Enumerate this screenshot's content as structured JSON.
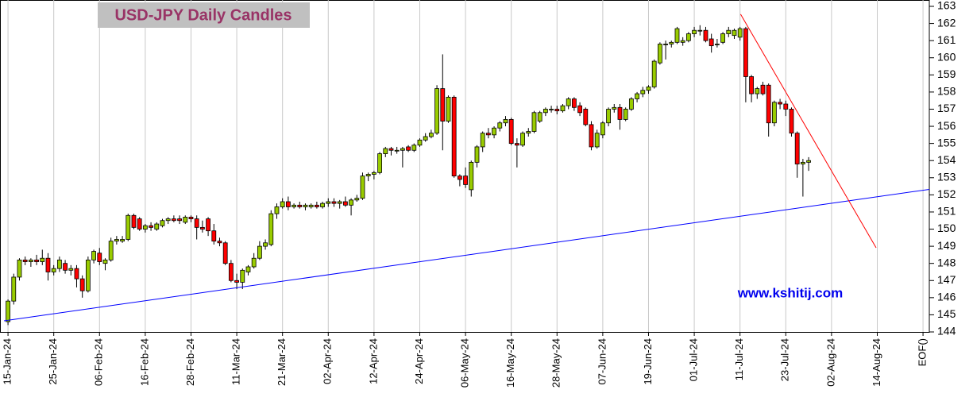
{
  "chart_data": {
    "type": "candlestick",
    "title": "USD-JPY Daily Candles",
    "watermark": "www.kshitij.com",
    "x": [
      0,
      1,
      2,
      3,
      4,
      5,
      6,
      7,
      8,
      9,
      10,
      11,
      12,
      13,
      14,
      15,
      16,
      17,
      18,
      19,
      20,
      21,
      22,
      23,
      24,
      25,
      26,
      27,
      28,
      29,
      30,
      31,
      32,
      33,
      34,
      35,
      36,
      37,
      38,
      39,
      40,
      41,
      42,
      43,
      44,
      45,
      46,
      47,
      48,
      49,
      50,
      51,
      52,
      53,
      54,
      55,
      56,
      57,
      58,
      59,
      60,
      61,
      62,
      63,
      64,
      65,
      66,
      67,
      68,
      69,
      70,
      71,
      72,
      73,
      74,
      75,
      76,
      77,
      78,
      79,
      80,
      81,
      82,
      83,
      84,
      85,
      86,
      87,
      88,
      89,
      90,
      91,
      92,
      93,
      94,
      95,
      96,
      97,
      98,
      99,
      100,
      101,
      102,
      103,
      104,
      105,
      106,
      107,
      108,
      109,
      110,
      111,
      112,
      113,
      114,
      115,
      116,
      117,
      118,
      119,
      120,
      121,
      122,
      123,
      124,
      125,
      126,
      127,
      128,
      129,
      130,
      131,
      132,
      133,
      134,
      135,
      136,
      137,
      138,
      139,
      140
    ],
    "ohlc": [
      [
        144.6,
        145.9,
        144.4,
        145.8
      ],
      [
        145.8,
        147.4,
        145.6,
        147.2
      ],
      [
        147.2,
        148.3,
        147.0,
        148.2
      ],
      [
        148.2,
        148.4,
        147.9,
        148.1
      ],
      [
        148.1,
        148.3,
        147.8,
        148.2
      ],
      [
        148.2,
        148.5,
        147.9,
        148.1
      ],
      [
        148.1,
        148.8,
        147.9,
        148.3
      ],
      [
        148.3,
        148.6,
        147.0,
        147.5
      ],
      [
        147.5,
        147.9,
        147.3,
        147.7
      ],
      [
        147.7,
        148.4,
        147.5,
        148.2
      ],
      [
        148.0,
        148.2,
        147.4,
        147.6
      ],
      [
        147.6,
        147.9,
        147.3,
        147.7
      ],
      [
        147.7,
        147.9,
        146.6,
        147.1
      ],
      [
        147.1,
        147.3,
        146.0,
        146.4
      ],
      [
        146.4,
        148.4,
        146.3,
        148.2
      ],
      [
        148.2,
        148.8,
        148.0,
        148.7
      ],
      [
        148.6,
        148.9,
        147.9,
        148.1
      ],
      [
        148.0,
        148.3,
        147.6,
        148.2
      ],
      [
        148.2,
        149.5,
        148.1,
        149.3
      ],
      [
        149.3,
        149.6,
        149.1,
        149.4
      ],
      [
        149.3,
        149.6,
        149.2,
        149.4
      ],
      [
        149.4,
        150.9,
        149.3,
        150.8
      ],
      [
        150.8,
        150.9,
        150.0,
        150.1
      ],
      [
        150.6,
        150.7,
        149.9,
        150.0
      ],
      [
        150.0,
        150.3,
        149.8,
        150.2
      ],
      [
        150.2,
        150.4,
        149.9,
        150.1
      ],
      [
        150.0,
        150.4,
        149.9,
        150.3
      ],
      [
        150.2,
        150.6,
        150.1,
        150.5
      ],
      [
        150.5,
        150.7,
        150.3,
        150.6
      ],
      [
        150.6,
        150.8,
        150.4,
        150.5
      ],
      [
        150.6,
        150.8,
        150.3,
        150.5
      ],
      [
        150.4,
        150.8,
        150.3,
        150.7
      ],
      [
        150.7,
        150.8,
        150.4,
        150.6
      ],
      [
        150.6,
        150.8,
        149.4,
        150.1
      ],
      [
        150.1,
        150.5,
        149.8,
        150.0
      ],
      [
        150.6,
        150.7,
        149.6,
        149.9
      ],
      [
        149.9,
        150.3,
        149.1,
        149.3
      ],
      [
        149.3,
        149.5,
        149.0,
        149.2
      ],
      [
        149.2,
        149.3,
        147.9,
        148.0
      ],
      [
        148.0,
        148.2,
        146.9,
        147.0
      ],
      [
        147.0,
        147.4,
        146.5,
        146.9
      ],
      [
        146.9,
        147.7,
        146.5,
        147.6
      ],
      [
        147.5,
        147.9,
        147.3,
        147.8
      ],
      [
        147.8,
        148.6,
        147.7,
        148.3
      ],
      [
        148.3,
        149.3,
        148.2,
        149.0
      ],
      [
        149.0,
        149.4,
        148.8,
        149.2
      ],
      [
        149.1,
        151.1,
        149.0,
        150.9
      ],
      [
        150.9,
        151.5,
        150.6,
        151.3
      ],
      [
        151.3,
        151.8,
        151.2,
        151.6
      ],
      [
        151.6,
        151.9,
        151.1,
        151.3
      ],
      [
        151.3,
        151.5,
        151.2,
        151.4
      ],
      [
        151.4,
        151.6,
        151.2,
        151.3
      ],
      [
        151.3,
        151.5,
        151.1,
        151.4
      ],
      [
        151.3,
        151.5,
        151.2,
        151.4
      ],
      [
        151.4,
        151.6,
        151.2,
        151.3
      ],
      [
        151.3,
        151.6,
        151.2,
        151.5
      ],
      [
        151.5,
        151.8,
        151.3,
        151.6
      ],
      [
        151.6,
        151.8,
        151.3,
        151.5
      ],
      [
        151.5,
        151.7,
        151.2,
        151.6
      ],
      [
        151.6,
        151.9,
        151.3,
        151.4
      ],
      [
        151.4,
        151.8,
        150.8,
        151.7
      ],
      [
        151.7,
        152.0,
        151.6,
        151.8
      ],
      [
        151.8,
        153.3,
        151.7,
        153.1
      ],
      [
        153.1,
        153.3,
        152.8,
        153.2
      ],
      [
        153.2,
        153.4,
        152.9,
        153.3
      ],
      [
        153.3,
        154.5,
        153.2,
        154.4
      ],
      [
        154.4,
        154.8,
        154.2,
        154.7
      ],
      [
        154.7,
        154.8,
        154.3,
        154.6
      ],
      [
        154.6,
        154.8,
        154.4,
        154.6
      ],
      [
        154.6,
        154.8,
        153.6,
        154.7
      ],
      [
        154.8,
        154.9,
        154.5,
        154.6
      ],
      [
        154.6,
        155.0,
        154.5,
        154.9
      ],
      [
        154.9,
        155.3,
        154.8,
        155.2
      ],
      [
        155.2,
        155.6,
        155.1,
        155.4
      ],
      [
        155.4,
        155.8,
        155.3,
        155.6
      ],
      [
        155.6,
        158.4,
        155.5,
        158.2
      ],
      [
        158.2,
        160.2,
        154.6,
        156.3
      ],
      [
        156.3,
        157.8,
        156.2,
        157.7
      ],
      [
        157.7,
        157.8,
        153.0,
        153.1
      ],
      [
        153.1,
        153.2,
        152.5,
        152.9
      ],
      [
        153.1,
        153.6,
        152.4,
        152.6
      ],
      [
        152.3,
        154.0,
        151.9,
        153.9
      ],
      [
        153.9,
        154.9,
        153.6,
        154.8
      ],
      [
        154.8,
        155.7,
        154.5,
        155.6
      ],
      [
        155.6,
        155.9,
        155.3,
        155.5
      ],
      [
        155.5,
        156.0,
        155.3,
        155.9
      ],
      [
        155.9,
        156.3,
        155.7,
        156.2
      ],
      [
        156.2,
        156.6,
        156.0,
        156.4
      ],
      [
        156.4,
        156.5,
        154.9,
        155.0
      ],
      [
        155.0,
        155.3,
        153.6,
        154.9
      ],
      [
        154.9,
        155.7,
        154.8,
        155.6
      ],
      [
        155.6,
        155.9,
        155.4,
        155.7
      ],
      [
        155.7,
        156.9,
        155.6,
        156.8
      ],
      [
        156.3,
        156.9,
        156.2,
        156.8
      ],
      [
        156.8,
        157.1,
        156.6,
        157.0
      ],
      [
        157.0,
        157.2,
        156.8,
        157.0
      ],
      [
        157.0,
        157.2,
        156.7,
        156.9
      ],
      [
        156.9,
        157.3,
        156.8,
        157.2
      ],
      [
        157.2,
        157.7,
        157.0,
        157.6
      ],
      [
        157.6,
        157.7,
        156.9,
        157.1
      ],
      [
        157.2,
        157.4,
        156.6,
        156.8
      ],
      [
        157.0,
        157.1,
        156.0,
        156.1
      ],
      [
        156.1,
        156.3,
        154.6,
        154.8
      ],
      [
        154.8,
        155.8,
        154.7,
        155.6
      ],
      [
        155.5,
        156.3,
        155.3,
        156.2
      ],
      [
        156.2,
        157.1,
        156.0,
        157.0
      ],
      [
        157.0,
        157.3,
        156.8,
        157.1
      ],
      [
        157.1,
        157.3,
        155.8,
        156.4
      ],
      [
        156.4,
        157.1,
        156.3,
        157.0
      ],
      [
        157.0,
        157.7,
        156.9,
        157.6
      ],
      [
        157.6,
        158.0,
        157.4,
        157.9
      ],
      [
        157.9,
        158.3,
        157.7,
        158.1
      ],
      [
        158.1,
        158.4,
        157.9,
        158.3
      ],
      [
        158.3,
        159.9,
        158.2,
        159.8
      ],
      [
        159.7,
        160.9,
        159.6,
        160.8
      ],
      [
        160.8,
        161.0,
        159.9,
        160.8
      ],
      [
        160.8,
        161.0,
        160.6,
        160.9
      ],
      [
        160.9,
        161.8,
        160.8,
        161.7
      ],
      [
        160.9,
        161.2,
        160.7,
        161.0
      ],
      [
        161.0,
        161.5,
        160.9,
        161.4
      ],
      [
        161.4,
        161.8,
        161.2,
        161.6
      ],
      [
        161.6,
        161.9,
        161.3,
        161.6
      ],
      [
        161.6,
        161.8,
        160.9,
        161.0
      ],
      [
        161.1,
        161.4,
        160.3,
        160.7
      ],
      [
        160.8,
        161.1,
        160.6,
        160.8
      ],
      [
        160.9,
        161.5,
        160.8,
        161.4
      ],
      [
        161.4,
        161.8,
        161.2,
        161.6
      ],
      [
        161.3,
        161.7,
        161.1,
        161.6
      ],
      [
        161.2,
        161.8,
        161.0,
        161.7
      ],
      [
        161.7,
        161.8,
        157.4,
        158.9
      ],
      [
        158.9,
        159.0,
        157.4,
        157.9
      ],
      [
        157.9,
        158.3,
        157.6,
        158.2
      ],
      [
        158.4,
        158.6,
        157.8,
        157.9
      ],
      [
        158.4,
        158.5,
        155.4,
        156.2
      ],
      [
        156.2,
        157.5,
        156.0,
        157.4
      ],
      [
        157.4,
        157.6,
        157.0,
        157.3
      ],
      [
        157.3,
        157.5,
        156.6,
        157.0
      ],
      [
        157.0,
        157.1,
        155.4,
        155.6
      ],
      [
        155.6,
        155.7,
        153.0,
        153.8
      ],
      [
        153.8,
        154.1,
        151.9,
        153.9
      ],
      [
        153.9,
        154.2,
        153.4,
        154.0
      ]
    ],
    "up_color": "#99cc00",
    "down_color": "#ff0000",
    "xlim": [
      -1.4,
      161.1
    ],
    "xticks": [
      {
        "value": 0,
        "label": "15-Jan-24"
      },
      {
        "value": 8,
        "label": "25-Jan-24"
      },
      {
        "value": 16,
        "label": "06-Feb-24"
      },
      {
        "value": 24,
        "label": "16-Feb-24"
      },
      {
        "value": 32,
        "label": "28-Feb-24"
      },
      {
        "value": 40,
        "label": "11-Mar-24"
      },
      {
        "value": 48,
        "label": "21-Mar-24"
      },
      {
        "value": 56,
        "label": "02-Apr-24"
      },
      {
        "value": 64,
        "label": "12-Apr-24"
      },
      {
        "value": 72,
        "label": "24-Apr-24"
      },
      {
        "value": 80,
        "label": "06-May-24"
      },
      {
        "value": 88,
        "label": "16-May-24"
      },
      {
        "value": 96,
        "label": "28-May-24"
      },
      {
        "value": 104,
        "label": "07-Jun-24"
      },
      {
        "value": 112,
        "label": "19-Jun-24"
      },
      {
        "value": 120,
        "label": "01-Jul-24"
      },
      {
        "value": 128,
        "label": "11-Jul-24"
      },
      {
        "value": 136,
        "label": "23-Jul-24"
      },
      {
        "value": 144,
        "label": "02-Aug-24"
      },
      {
        "value": 152,
        "label": "14-Aug-24"
      },
      {
        "value": 160,
        "label": "EOF()"
      }
    ],
    "ylim": [
      144,
      163
    ],
    "yticks": [
      144,
      145,
      146,
      147,
      148,
      149,
      150,
      151,
      152,
      153,
      154,
      155,
      156,
      157,
      158,
      159,
      160,
      161,
      162,
      163
    ],
    "trendlines": [
      {
        "color": "#0000ff",
        "x": [
          -0.7,
          161.1
        ],
        "y": [
          144.65,
          152.32
        ]
      },
      {
        "color": "#ff0000",
        "x": [
          128.1,
          151.8
        ],
        "y": [
          162.54,
          148.91
        ]
      }
    ],
    "grid": true
  }
}
